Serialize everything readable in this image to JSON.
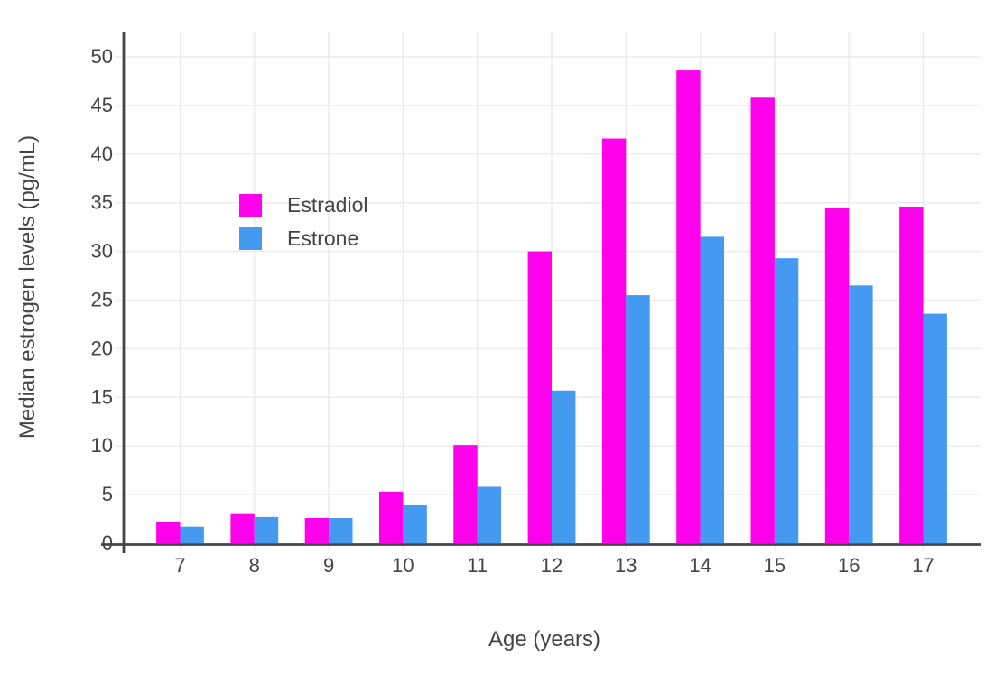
{
  "chart_data": {
    "type": "bar",
    "bar_layout": "grouped",
    "title": "",
    "xlabel": "Age (years)",
    "ylabel": "Median estrogen levels (pg/mL)",
    "categories": [
      "7",
      "8",
      "9",
      "10",
      "11",
      "12",
      "13",
      "14",
      "15",
      "16",
      "17"
    ],
    "series": [
      {
        "name": "Estradiol",
        "color": "#FF00EC",
        "values": [
          2.2,
          3.0,
          2.6,
          5.3,
          10.1,
          30.0,
          41.6,
          48.6,
          45.8,
          34.5,
          34.6
        ]
      },
      {
        "name": "Estrone",
        "color": "#4499F0",
        "values": [
          1.7,
          2.7,
          2.6,
          3.9,
          5.8,
          15.7,
          25.5,
          31.5,
          29.3,
          26.5,
          23.6
        ]
      }
    ],
    "ylim": [
      0,
      50
    ],
    "yticks": [
      "0",
      "5",
      "10",
      "15",
      "20",
      "25",
      "30",
      "35",
      "40",
      "45",
      "50"
    ],
    "grid": true,
    "legend_position": "inside-top-left"
  },
  "colors": {
    "axis": "#444444",
    "grid": "#EBEBEB",
    "tick": "#EBEBEB",
    "text": "#444444",
    "background": "#FFFFFF"
  }
}
